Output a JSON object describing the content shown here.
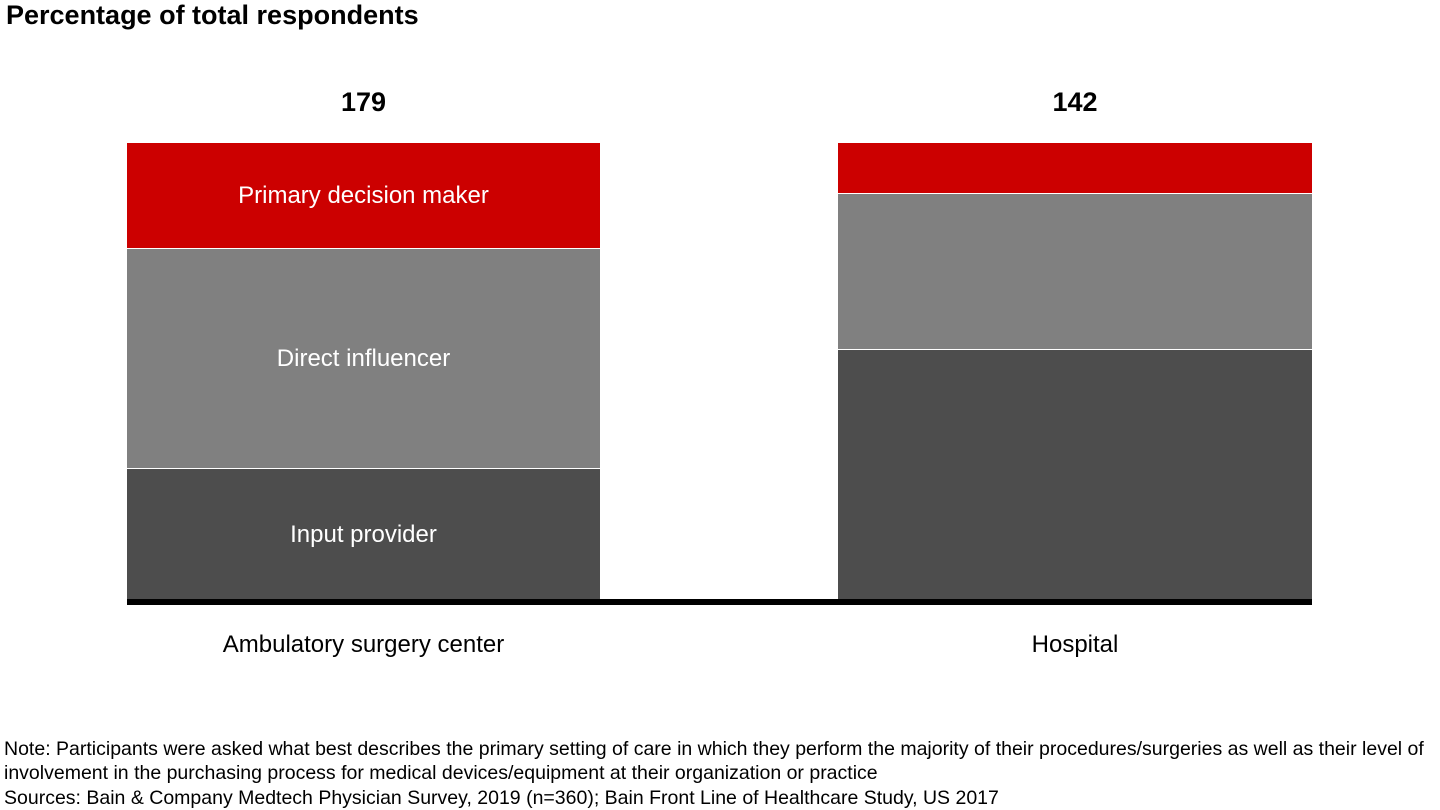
{
  "chart_data": {
    "type": "bar",
    "subtype": "stacked-100-percent-column",
    "title": "Percentage of total respondents",
    "categories": [
      "Ambulatory surgery center",
      "Hospital"
    ],
    "totals": [
      "179",
      "142"
    ],
    "series": [
      {
        "name": "Primary decision maker",
        "color": "#cc0000",
        "values": [
          23,
          11
        ]
      },
      {
        "name": "Direct influencer",
        "color": "#808080",
        "values": [
          48,
          34
        ]
      },
      {
        "name": "Input provider",
        "color": "#4d4d4d",
        "values": [
          29,
          55
        ]
      }
    ],
    "values_unit": "percent of total respondents",
    "ylim": [
      0,
      100
    ],
    "grid": false,
    "axes_shown": "baseline-only",
    "baseline_color": "#000000",
    "legend_position": "labels-inside-first-bar",
    "label_bar_index": 0
  },
  "footnotes": {
    "note": "Note: Participants were asked what best describes the primary setting of care in which they perform the majority of their procedures/surgeries as well as their level of involvement in the purchasing process for medical devices/equipment at their organization or practice",
    "sources": "Sources: Bain & Company Medtech Physician Survey, 2019 (n=360); Bain Front Line of Healthcare Study, US 2017"
  }
}
